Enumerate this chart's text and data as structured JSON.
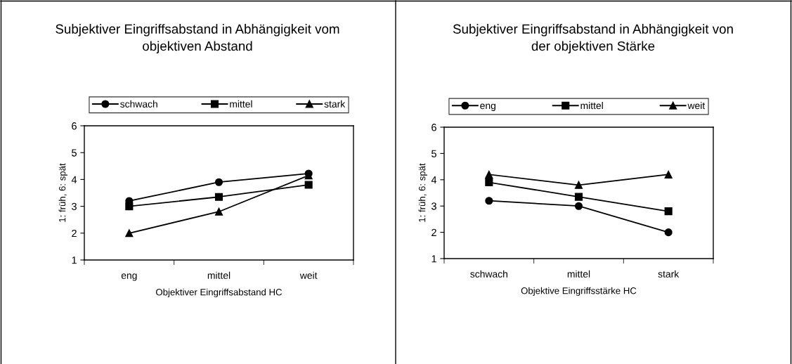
{
  "chart_data": [
    {
      "type": "line",
      "title": "Subjektiver Eingriffsabstand in Abhängigkeit vom\nobjektiven Abstand",
      "xlabel": "Objektiver Eingriffsabstand HC",
      "ylabel": "1: früh, 6: spät",
      "categories": [
        "eng",
        "mittel",
        "weit"
      ],
      "ylim": [
        1,
        6
      ],
      "yticks": [
        1,
        2,
        3,
        4,
        5,
        6
      ],
      "grid": false,
      "legend": "top",
      "series": [
        {
          "name": "schwach",
          "color": "#000000",
          "marker": "circle",
          "values": [
            3.2,
            3.9,
            4.22
          ]
        },
        {
          "name": "mittel",
          "color": "#000000",
          "marker": "square",
          "values": [
            3.0,
            3.35,
            3.8
          ]
        },
        {
          "name": "stark",
          "color": "#000000",
          "marker": "triangle",
          "values": [
            2.0,
            2.8,
            4.15
          ]
        }
      ]
    },
    {
      "type": "line",
      "title": "Subjektiver Eingriffsabstand in Abhängigkeit von\nder objektiven Stärke",
      "xlabel": "Objektive Eingriffsstärke HC",
      "ylabel": "1: früh, 6: spät",
      "categories": [
        "schwach",
        "mittel",
        "stark"
      ],
      "ylim": [
        1,
        6
      ],
      "yticks": [
        1,
        2,
        3,
        4,
        5,
        6
      ],
      "grid": false,
      "legend": "top",
      "series": [
        {
          "name": "eng",
          "color": "#000000",
          "marker": "circle",
          "values": [
            3.2,
            3.0,
            2.0
          ]
        },
        {
          "name": "mittel",
          "color": "#000000",
          "marker": "square",
          "values": [
            3.9,
            3.35,
            2.8
          ]
        },
        {
          "name": "weit",
          "color": "#000000",
          "marker": "triangle",
          "values": [
            4.2,
            3.8,
            4.2
          ]
        }
      ]
    }
  ]
}
